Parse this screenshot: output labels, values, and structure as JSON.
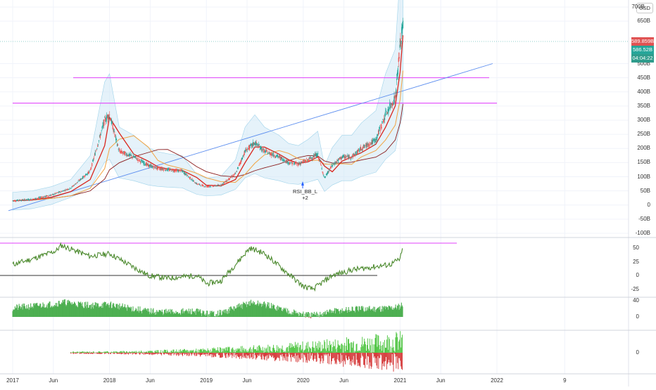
{
  "currency": "USD",
  "price_tags": {
    "last_price": "589.859B",
    "prev_close": "586.52B",
    "countdown": "04:04:22"
  },
  "colors": {
    "last_price": "#e05252",
    "prev_close": "#26a69a",
    "countdown": "#2f9c8c",
    "candles_up": "#26a69a",
    "candles_down": "#ef5350",
    "horizontal_lines": "#e040fb",
    "trendline": "#5b8def",
    "bb_fill": "#cfe8f5",
    "rsi_line": "#4c8a2e",
    "macd_pos": "#4caf50",
    "macd_neg": "#b03a2e"
  },
  "price_axis_ticks": [
    "700B",
    "650B",
    "500B",
    "450B",
    "400B",
    "350B",
    "300B",
    "250B",
    "200B",
    "150B",
    "100B",
    "50B",
    "0",
    "-50B",
    "-100B"
  ],
  "rsi_axis_ticks": [
    "50",
    "25",
    "0",
    "-25"
  ],
  "macd_axis_ticks": [
    "40",
    "0"
  ],
  "vol_axis_ticks": [
    "0"
  ],
  "date_axis": [
    "2017",
    "Jun",
    "2018",
    "Jun",
    "2019",
    "Jun",
    "2020",
    "Jun",
    "2021",
    "Jun",
    "2022",
    "9"
  ],
  "signal_label": {
    "name": "RSI_BB_L",
    "count": "+2"
  },
  "chart_data": {
    "type": "line",
    "series": [
      {
        "values": [
          [
            2017.0,
            15
          ],
          [
            2017.2,
            20
          ],
          [
            2017.4,
            35
          ],
          [
            2017.6,
            60
          ],
          [
            2017.8,
            120
          ],
          [
            2017.95,
            300
          ],
          [
            2018.0,
            320
          ],
          [
            2018.1,
            190
          ],
          [
            2018.25,
            170
          ],
          [
            2018.4,
            140
          ],
          [
            2018.5,
            130
          ],
          [
            2018.6,
            125
          ],
          [
            2018.75,
            120
          ],
          [
            2018.9,
            75
          ],
          [
            2019.0,
            65
          ],
          [
            2019.15,
            70
          ],
          [
            2019.3,
            110
          ],
          [
            2019.4,
            190
          ],
          [
            2019.5,
            220
          ],
          [
            2019.6,
            190
          ],
          [
            2019.75,
            170
          ],
          [
            2019.85,
            150
          ],
          [
            2019.95,
            145
          ],
          [
            2020.05,
            160
          ],
          [
            2020.15,
            180
          ],
          [
            2020.22,
            95
          ],
          [
            2020.3,
            140
          ],
          [
            2020.4,
            170
          ],
          [
            2020.5,
            170
          ],
          [
            2020.6,
            200
          ],
          [
            2020.75,
            230
          ],
          [
            2020.85,
            320
          ],
          [
            2020.95,
            380
          ],
          [
            2021.0,
            560
          ],
          [
            2021.03,
            640
          ]
        ]
      }
    ],
    "ylim": [
      -100,
      700
    ],
    "xlim": [
      2016.95,
      2021.75
    ],
    "horizontal_levels": [
      450,
      360
    ]
  }
}
